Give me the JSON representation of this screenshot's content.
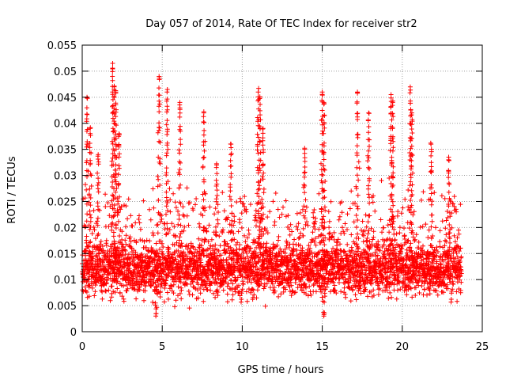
{
  "chart_data": {
    "type": "scatter",
    "title": "Day 057 of 2014, Rate Of TEC Index for receiver str2",
    "xlabel": "GPS time / hours",
    "ylabel": "ROTI / TECUs",
    "xlim": [
      0,
      25
    ],
    "ylim": [
      0,
      0.055
    ],
    "grid": true,
    "marker": "+",
    "series_color": "#ff0000",
    "x_ticks": [
      {
        "value": 0,
        "label": "0"
      },
      {
        "value": 5,
        "label": "5"
      },
      {
        "value": 10,
        "label": "10"
      },
      {
        "value": 15,
        "label": "15"
      },
      {
        "value": 20,
        "label": "20"
      },
      {
        "value": 25,
        "label": "25"
      }
    ],
    "y_ticks": [
      {
        "value": 0,
        "label": "0"
      },
      {
        "value": 0.005,
        "label": "0.005"
      },
      {
        "value": 0.01,
        "label": "0.01"
      },
      {
        "value": 0.015,
        "label": "0.015"
      },
      {
        "value": 0.02,
        "label": "0.02"
      },
      {
        "value": 0.025,
        "label": "0.025"
      },
      {
        "value": 0.03,
        "label": "0.03"
      },
      {
        "value": 0.035,
        "label": "0.035"
      },
      {
        "value": 0.04,
        "label": "0.04"
      },
      {
        "value": 0.045,
        "label": "0.045"
      },
      {
        "value": 0.05,
        "label": "0.05"
      },
      {
        "value": 0.055,
        "label": "0.055"
      }
    ],
    "data_coverage_hours": [
      0,
      23.7
    ],
    "baseline_band": [
      0.005,
      0.02
    ],
    "spikes": [
      {
        "x": 0.3,
        "y": 0.045
      },
      {
        "x": 0.5,
        "y": 0.039
      },
      {
        "x": 1.0,
        "y": 0.034
      },
      {
        "x": 1.9,
        "y": 0.0515
      },
      {
        "x": 2.0,
        "y": 0.047
      },
      {
        "x": 2.1,
        "y": 0.046
      },
      {
        "x": 2.3,
        "y": 0.038
      },
      {
        "x": 4.8,
        "y": 0.049
      },
      {
        "x": 5.3,
        "y": 0.046
      },
      {
        "x": 6.1,
        "y": 0.044
      },
      {
        "x": 7.6,
        "y": 0.042
      },
      {
        "x": 8.4,
        "y": 0.032
      },
      {
        "x": 9.3,
        "y": 0.036
      },
      {
        "x": 11.0,
        "y": 0.046
      },
      {
        "x": 11.1,
        "y": 0.045
      },
      {
        "x": 11.3,
        "y": 0.039
      },
      {
        "x": 13.9,
        "y": 0.035
      },
      {
        "x": 15.0,
        "y": 0.046
      },
      {
        "x": 15.1,
        "y": 0.044
      },
      {
        "x": 17.2,
        "y": 0.046
      },
      {
        "x": 17.9,
        "y": 0.042
      },
      {
        "x": 19.3,
        "y": 0.0455
      },
      {
        "x": 19.4,
        "y": 0.044
      },
      {
        "x": 20.5,
        "y": 0.047
      },
      {
        "x": 20.6,
        "y": 0.042
      },
      {
        "x": 21.8,
        "y": 0.036
      },
      {
        "x": 22.9,
        "y": 0.0335
      },
      {
        "x": 4.6,
        "y": 0.003
      },
      {
        "x": 15.1,
        "y": 0.003
      }
    ]
  }
}
